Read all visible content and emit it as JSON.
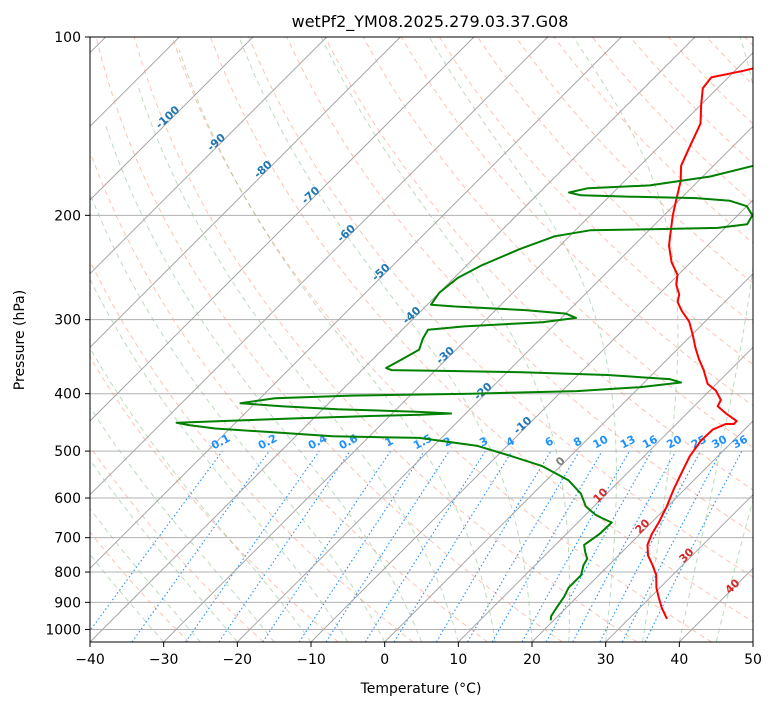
{
  "chart_data": {
    "type": "line",
    "title": "wetPf2_YM08.2025.279.03.37.G08",
    "xlabel": "Temperature (°C)",
    "ylabel": "Pressure (hPa)",
    "xlim": [
      -40,
      50
    ],
    "ylim": [
      1050,
      100
    ],
    "y_scale": "log",
    "grid": true,
    "x_ticks": [
      -40,
      -30,
      -20,
      -10,
      0,
      10,
      20,
      30,
      40,
      50
    ],
    "y_ticks": [
      100,
      200,
      300,
      400,
      500,
      600,
      700,
      800,
      900,
      1000
    ],
    "colors": {
      "temperature": "#ff0000",
      "dewpoint": "#008000",
      "isotherm_label": "#1f77b4",
      "mixing_ratio": "#1e90ff",
      "dry_adiabat": "#ffa07a",
      "moist_adiabat": "#8fbc8f",
      "grid": "#b0b0b0"
    },
    "series": [
      {
        "role": "temperature",
        "points": [
          [
            35.2,
            960
          ],
          [
            33,
            920
          ],
          [
            31,
            880
          ],
          [
            29.5,
            850
          ],
          [
            27.8,
            810
          ],
          [
            26,
            780
          ],
          [
            24,
            750
          ],
          [
            22.5,
            720
          ],
          [
            21.6,
            690
          ],
          [
            21,
            660
          ],
          [
            19.9,
            620
          ],
          [
            18.5,
            580
          ],
          [
            17.2,
            540
          ],
          [
            16.2,
            510
          ],
          [
            15.6,
            480
          ],
          [
            15.7,
            460
          ],
          [
            16.7,
            450
          ],
          [
            17.8,
            450
          ],
          [
            17.8,
            445
          ],
          [
            15.5,
            433
          ],
          [
            13.2,
            420
          ],
          [
            12.8,
            410
          ],
          [
            10.8,
            395
          ],
          [
            8.8,
            385
          ],
          [
            6.4,
            365
          ],
          [
            4.3,
            350
          ],
          [
            2.3,
            335
          ],
          [
            0.1,
            318
          ],
          [
            -2.2,
            302
          ],
          [
            -4.6,
            290
          ],
          [
            -6.4,
            280
          ],
          [
            -7.2,
            272
          ],
          [
            -8.9,
            262
          ],
          [
            -10.1,
            252
          ],
          [
            -12.6,
            240
          ],
          [
            -15.2,
            225
          ],
          [
            -16.6,
            215
          ],
          [
            -18.8,
            200
          ],
          [
            -20.2,
            190
          ],
          [
            -22.4,
            175
          ],
          [
            -24.4,
            165
          ],
          [
            -25.6,
            155
          ],
          [
            -27.5,
            140
          ],
          [
            -30,
            130
          ],
          [
            -32,
            122
          ],
          [
            -32.3,
            117
          ],
          [
            -28.8,
            114
          ],
          [
            -27,
            112
          ],
          [
            -25,
            110
          ],
          [
            -24.4,
            107
          ],
          [
            -26.3,
            102
          ],
          [
            -27.2,
            98
          ]
        ]
      },
      {
        "role": "dewpoint",
        "points": [
          [
            19.6,
            965
          ],
          [
            19.1,
            950
          ],
          [
            18.7,
            920
          ],
          [
            18.2,
            880
          ],
          [
            17.6,
            850
          ],
          [
            17.6,
            810
          ],
          [
            16.6,
            780
          ],
          [
            16.2,
            760
          ],
          [
            15,
            740
          ],
          [
            13.9,
            720
          ],
          [
            14.5,
            690
          ],
          [
            14.6,
            660
          ],
          [
            12.9,
            650
          ],
          [
            11.3,
            640
          ],
          [
            8.9,
            620
          ],
          [
            6.5,
            590
          ],
          [
            3,
            560
          ],
          [
            -2.5,
            530
          ],
          [
            -8,
            510
          ],
          [
            -14,
            490
          ],
          [
            -23,
            475
          ],
          [
            -35,
            472
          ],
          [
            -42,
            466
          ],
          [
            -52,
            458
          ],
          [
            -56,
            452
          ],
          [
            -58,
            448
          ],
          [
            -42,
            440
          ],
          [
            -32,
            436
          ],
          [
            -26,
            434
          ],
          [
            -22,
            432
          ],
          [
            -27,
            429
          ],
          [
            -38,
            425
          ],
          [
            -46,
            420
          ],
          [
            -52,
            415
          ],
          [
            -48,
            407
          ],
          [
            -38,
            403
          ],
          [
            -22,
            400
          ],
          [
            -8,
            396
          ],
          [
            0,
            390
          ],
          [
            5,
            383
          ],
          [
            3,
            378
          ],
          [
            -6,
            372
          ],
          [
            -18,
            368
          ],
          [
            -30,
            366
          ],
          [
            -36,
            365
          ],
          [
            -37,
            362
          ],
          [
            -36,
            350
          ],
          [
            -35,
            337
          ],
          [
            -36,
            323
          ],
          [
            -36.5,
            312
          ],
          [
            -32,
            308
          ],
          [
            -22,
            303
          ],
          [
            -18,
            298
          ],
          [
            -20,
            293
          ],
          [
            -26,
            289
          ],
          [
            -36,
            285
          ],
          [
            -39.5,
            283
          ],
          [
            -40,
            270
          ],
          [
            -39.5,
            255
          ],
          [
            -38,
            243
          ],
          [
            -35,
            228
          ],
          [
            -32,
            217
          ],
          [
            -28,
            212
          ],
          [
            -19,
            211
          ],
          [
            -11,
            210
          ],
          [
            -7.5,
            207
          ],
          [
            -8,
            200
          ],
          [
            -10,
            193
          ],
          [
            -13,
            189
          ],
          [
            -18,
            187
          ],
          [
            -27,
            186
          ],
          [
            -34,
            185
          ],
          [
            -36,
            183
          ],
          [
            -34,
            180
          ],
          [
            -26,
            178
          ],
          [
            -19,
            172
          ],
          [
            -14,
            164
          ],
          [
            -10,
            157
          ],
          [
            -7,
            150
          ],
          [
            -5.5,
            142
          ],
          [
            -6,
            135
          ],
          [
            -7.2,
            130
          ],
          [
            -9.4,
            122
          ],
          [
            -10,
            118
          ],
          [
            -11.2,
            114
          ],
          [
            -11.3,
            110
          ],
          [
            -11.1,
            107
          ],
          [
            -8.5,
            104
          ],
          [
            -6,
            102
          ],
          [
            -3,
            99
          ]
        ]
      }
    ],
    "isotherm_labels": [
      "-100",
      "-90",
      "-80",
      "-70",
      "-60",
      "-50",
      "-40",
      "-30",
      "-20",
      "-10"
    ],
    "mixing_ratio_labels": [
      "0.1",
      "0.2",
      "0.4",
      "0.6",
      "1",
      "1.5",
      "2",
      "3",
      "4",
      "6",
      "8",
      "10",
      "13",
      "16",
      "20",
      "25",
      "30",
      "36"
    ],
    "moist_adiabat_labels": [
      "0",
      "10",
      "20",
      "30",
      "40"
    ]
  }
}
